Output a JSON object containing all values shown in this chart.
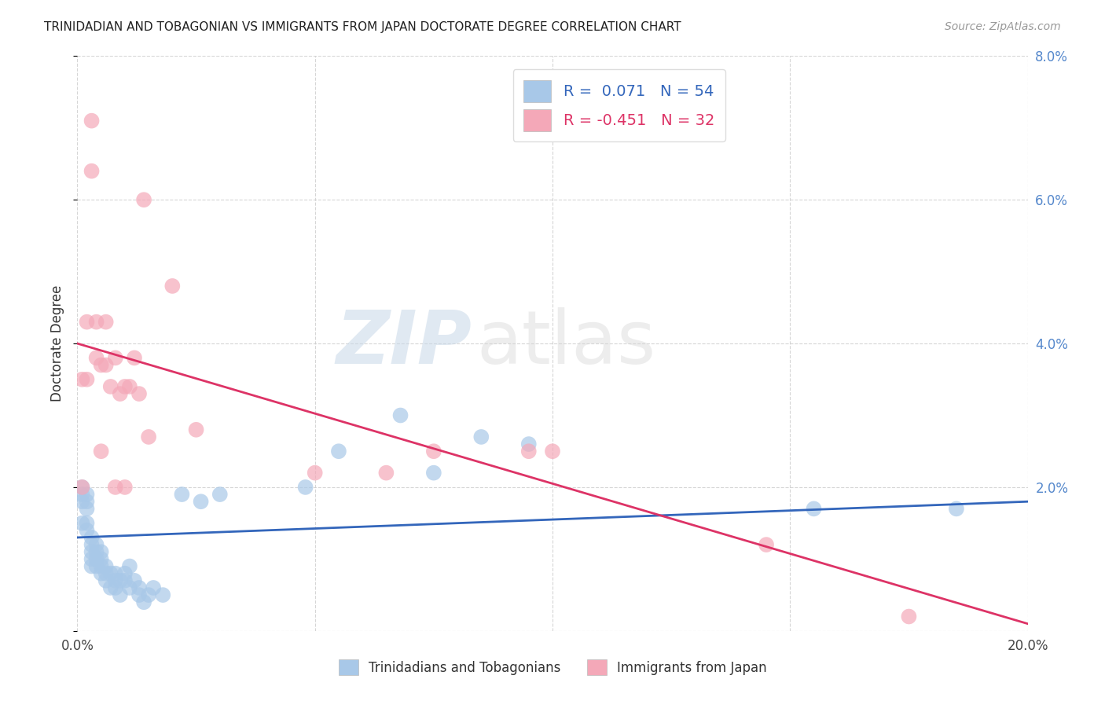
{
  "title": "TRINIDADIAN AND TOBAGONIAN VS IMMIGRANTS FROM JAPAN DOCTORATE DEGREE CORRELATION CHART",
  "source": "Source: ZipAtlas.com",
  "ylabel": "Doctorate Degree",
  "xlim": [
    0,
    0.2
  ],
  "ylim": [
    0,
    0.08
  ],
  "xticks": [
    0.0,
    0.05,
    0.1,
    0.15,
    0.2
  ],
  "yticks": [
    0.0,
    0.02,
    0.04,
    0.06,
    0.08
  ],
  "xtick_labels_show": [
    "0.0%",
    "",
    "",
    "",
    "20.0%"
  ],
  "ytick_labels_show": [
    "",
    "2.0%",
    "4.0%",
    "6.0%",
    "8.0%"
  ],
  "blue_color": "#a8c8e8",
  "pink_color": "#f4a8b8",
  "blue_line_color": "#3366bb",
  "pink_line_color": "#dd3366",
  "legend_blue_label": "Trinidadians and Tobagonians",
  "legend_pink_label": "Immigrants from Japan",
  "R_blue": "0.071",
  "N_blue": "54",
  "R_pink": "-0.451",
  "N_pink": "32",
  "blue_scatter_x": [
    0.001,
    0.001,
    0.001,
    0.001,
    0.002,
    0.002,
    0.002,
    0.002,
    0.002,
    0.003,
    0.003,
    0.003,
    0.003,
    0.003,
    0.004,
    0.004,
    0.004,
    0.004,
    0.005,
    0.005,
    0.005,
    0.005,
    0.006,
    0.006,
    0.006,
    0.007,
    0.007,
    0.008,
    0.008,
    0.008,
    0.009,
    0.009,
    0.01,
    0.01,
    0.011,
    0.011,
    0.012,
    0.013,
    0.013,
    0.014,
    0.015,
    0.016,
    0.018,
    0.022,
    0.026,
    0.03,
    0.048,
    0.055,
    0.068,
    0.075,
    0.085,
    0.095,
    0.155,
    0.185
  ],
  "blue_scatter_y": [
    0.02,
    0.019,
    0.018,
    0.015,
    0.019,
    0.018,
    0.017,
    0.015,
    0.014,
    0.013,
    0.012,
    0.011,
    0.01,
    0.009,
    0.012,
    0.011,
    0.01,
    0.009,
    0.011,
    0.01,
    0.009,
    0.008,
    0.009,
    0.008,
    0.007,
    0.008,
    0.006,
    0.008,
    0.007,
    0.006,
    0.007,
    0.005,
    0.008,
    0.007,
    0.009,
    0.006,
    0.007,
    0.006,
    0.005,
    0.004,
    0.005,
    0.006,
    0.005,
    0.019,
    0.018,
    0.019,
    0.02,
    0.025,
    0.03,
    0.022,
    0.027,
    0.026,
    0.017,
    0.017
  ],
  "pink_scatter_x": [
    0.001,
    0.001,
    0.002,
    0.002,
    0.003,
    0.003,
    0.004,
    0.004,
    0.005,
    0.005,
    0.006,
    0.006,
    0.007,
    0.008,
    0.008,
    0.009,
    0.01,
    0.01,
    0.011,
    0.012,
    0.013,
    0.014,
    0.015,
    0.02,
    0.025,
    0.05,
    0.065,
    0.075,
    0.095,
    0.1,
    0.145,
    0.175
  ],
  "pink_scatter_y": [
    0.035,
    0.02,
    0.043,
    0.035,
    0.071,
    0.064,
    0.043,
    0.038,
    0.037,
    0.025,
    0.043,
    0.037,
    0.034,
    0.038,
    0.02,
    0.033,
    0.034,
    0.02,
    0.034,
    0.038,
    0.033,
    0.06,
    0.027,
    0.048,
    0.028,
    0.022,
    0.022,
    0.025,
    0.025,
    0.025,
    0.012,
    0.002
  ],
  "blue_trend_x": [
    0.0,
    0.2
  ],
  "blue_trend_y": [
    0.013,
    0.018
  ],
  "pink_trend_x": [
    0.0,
    0.2
  ],
  "pink_trend_y": [
    0.04,
    0.001
  ],
  "watermark_zip": "ZIP",
  "watermark_atlas": "atlas",
  "background_color": "#ffffff",
  "grid_color": "#cccccc"
}
